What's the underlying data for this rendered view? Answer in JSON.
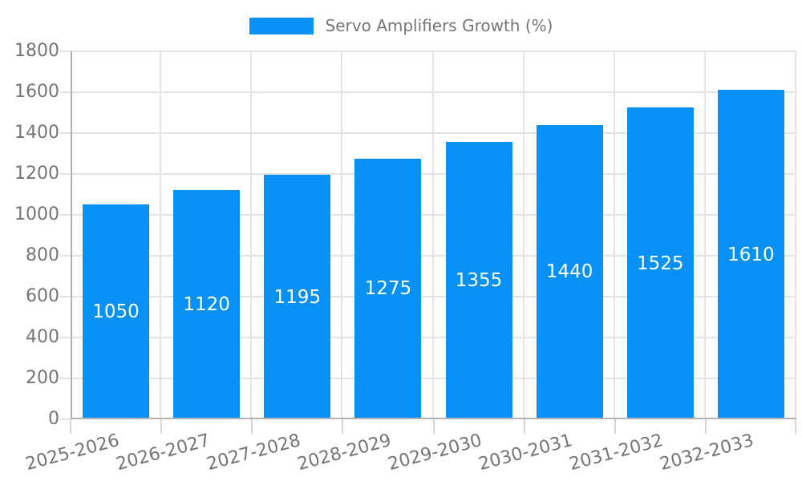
{
  "legend": {
    "label": "Servo Amplifiers Growth (%)"
  },
  "chart_data": {
    "type": "bar",
    "title": "Servo Amplifiers Growth (%)",
    "categories": [
      "2025-2026",
      "2026-2027",
      "2027-2028",
      "2028-2029",
      "2029-2030",
      "2030-2031",
      "2031-2032",
      "2032-2033"
    ],
    "values": [
      1050,
      1120,
      1195,
      1275,
      1355,
      1440,
      1525,
      1610
    ],
    "bar_value_labels": [
      "1050",
      "1120",
      "1195",
      "1275",
      "1355",
      "1440",
      "1525",
      "1610"
    ],
    "xlabel": "",
    "ylabel": "",
    "ylim": [
      0,
      1800
    ],
    "ytick_step": 200,
    "ytick_labels": [
      "0",
      "200",
      "400",
      "600",
      "800",
      "1000",
      "1200",
      "1400",
      "1600",
      "1800"
    ],
    "grid": true,
    "legend_position": "top-center",
    "colors": {
      "bar": "#0790f5",
      "bar_value_text": "#ffffff",
      "axis_text": "#757575",
      "gridline": "#e3e3e3",
      "axis_line": "#b0b0b0",
      "background": "#ffffff"
    }
  }
}
